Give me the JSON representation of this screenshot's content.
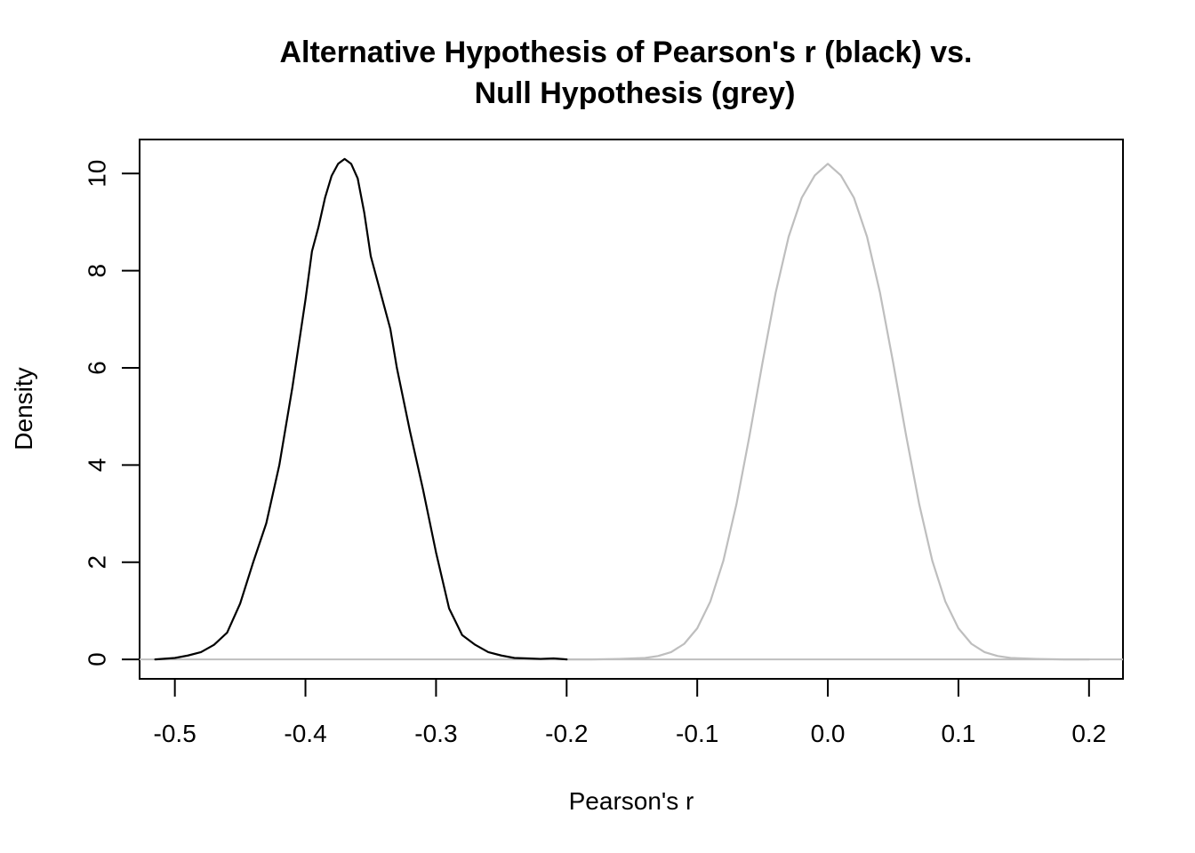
{
  "chart_data": {
    "type": "line",
    "title": "Alternative Hypothesis of Pearson's r (black) vs.",
    "subtitle": "Null Hypothesis (grey)",
    "xlabel": "Pearson's r",
    "ylabel": "Density",
    "xlim": [
      -0.527,
      0.226
    ],
    "ylim": [
      -0.4,
      10.7
    ],
    "x_ticks": [
      -0.5,
      -0.4,
      -0.3,
      -0.2,
      -0.1,
      0.0,
      0.1,
      0.2
    ],
    "x_tick_labels": [
      "-0.5",
      "-0.4",
      "-0.3",
      "-0.2",
      "-0.1",
      "0.0",
      "0.1",
      "0.2"
    ],
    "y_ticks": [
      0,
      2,
      4,
      6,
      8,
      10
    ],
    "y_tick_labels": [
      "0",
      "2",
      "4",
      "6",
      "8",
      "10"
    ],
    "grid": false,
    "series": [
      {
        "color": "#000000",
        "x": [
          -0.515,
          -0.5,
          -0.49,
          -0.48,
          -0.47,
          -0.46,
          -0.45,
          -0.44,
          -0.43,
          -0.42,
          -0.41,
          -0.4,
          -0.395,
          -0.39,
          -0.385,
          -0.38,
          -0.375,
          -0.37,
          -0.365,
          -0.36,
          -0.355,
          -0.35,
          -0.345,
          -0.34,
          -0.335,
          -0.33,
          -0.32,
          -0.31,
          -0.3,
          -0.29,
          -0.28,
          -0.27,
          -0.26,
          -0.25,
          -0.24,
          -0.23,
          -0.22,
          -0.21,
          -0.2
        ],
        "y": [
          0.0,
          0.03,
          0.08,
          0.15,
          0.3,
          0.55,
          1.15,
          2.0,
          2.8,
          4.0,
          5.6,
          7.4,
          8.4,
          8.9,
          9.5,
          9.95,
          10.2,
          10.3,
          10.2,
          9.9,
          9.2,
          8.3,
          7.8,
          7.3,
          6.8,
          6.0,
          4.7,
          3.5,
          2.2,
          1.05,
          0.5,
          0.3,
          0.15,
          0.08,
          0.03,
          0.02,
          0.01,
          0.02,
          0.0
        ]
      },
      {
        "color": "#bebebe",
        "x": [
          -0.2,
          -0.18,
          -0.16,
          -0.14,
          -0.13,
          -0.12,
          -0.11,
          -0.1,
          -0.09,
          -0.08,
          -0.07,
          -0.06,
          -0.05,
          -0.04,
          -0.03,
          -0.02,
          -0.01,
          0.0,
          0.01,
          0.02,
          0.03,
          0.04,
          0.05,
          0.06,
          0.07,
          0.08,
          0.09,
          0.1,
          0.11,
          0.12,
          0.13,
          0.14,
          0.16,
          0.18,
          0.2
        ],
        "y": [
          0.0,
          0.0,
          0.01,
          0.03,
          0.07,
          0.15,
          0.32,
          0.64,
          1.19,
          2.03,
          3.19,
          4.6,
          6.11,
          7.54,
          8.7,
          9.5,
          9.96,
          10.2,
          9.96,
          9.5,
          8.7,
          7.54,
          6.11,
          4.6,
          3.19,
          2.03,
          1.19,
          0.64,
          0.32,
          0.15,
          0.07,
          0.03,
          0.01,
          0.0,
          0.0
        ]
      }
    ],
    "reference_line": {
      "y": 0,
      "color": "#bebebe"
    }
  }
}
